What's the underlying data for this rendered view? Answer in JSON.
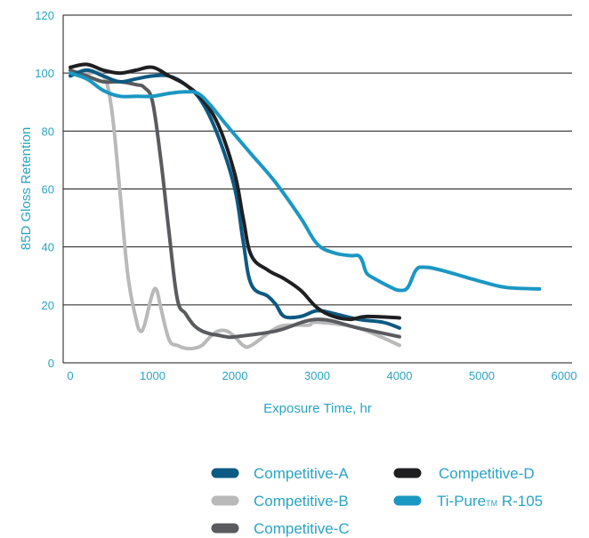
{
  "chart_data": {
    "type": "line",
    "title": "",
    "xlabel": "Exposure Time, hr",
    "ylabel": "85D Gloss Retention",
    "xlim": [
      0,
      6000
    ],
    "ylim": [
      0,
      120
    ],
    "xticks": [
      0,
      1000,
      2000,
      3000,
      4000,
      5000,
      6000
    ],
    "yticks": [
      0,
      20,
      40,
      60,
      80,
      100,
      120
    ],
    "grid": "horizontal",
    "legend_placement": "bottom",
    "label_color": "#2aa3c4",
    "series": [
      {
        "name": "Competitive-A",
        "color": "#0d5a82",
        "x": [
          0,
          200,
          400,
          600,
          800,
          1000,
          1200,
          1400,
          1600,
          1800,
          2000,
          2100,
          2200,
          2400,
          2500,
          2600,
          2800,
          3000,
          3200,
          3500,
          3800,
          4000
        ],
        "y": [
          99,
          101,
          99,
          97,
          98,
          99,
          99,
          96,
          90,
          78,
          60,
          42,
          27,
          23,
          20,
          16,
          16,
          18,
          17,
          15,
          14,
          12
        ]
      },
      {
        "name": "Competitive-B",
        "color": "#b9b9b9",
        "x": [
          0,
          200,
          400,
          500,
          600,
          700,
          800,
          850,
          900,
          1000,
          1050,
          1100,
          1200,
          1300,
          1400,
          1500,
          1600,
          1700,
          1800,
          1900,
          2000,
          2100,
          2200,
          2500,
          2700,
          2900,
          3000,
          3500,
          4000
        ],
        "y": [
          100,
          100,
          99,
          88,
          60,
          30,
          15,
          11,
          13,
          24,
          25,
          19,
          8,
          6,
          5,
          5,
          6,
          9,
          11,
          11,
          9,
          6,
          6,
          12,
          13,
          13,
          14,
          12,
          6
        ]
      },
      {
        "name": "Competitive-C",
        "color": "#595b5f",
        "x": [
          0,
          200,
          400,
          600,
          800,
          900,
          1000,
          1100,
          1200,
          1300,
          1400,
          1500,
          1600,
          1700,
          1800,
          1900,
          2000,
          2500,
          3000,
          3500,
          4000
        ],
        "y": [
          101,
          99,
          97,
          97,
          96,
          95,
          90,
          70,
          45,
          22,
          17,
          13,
          11,
          10,
          9.5,
          9,
          9,
          11,
          15,
          12,
          9
        ]
      },
      {
        "name": "Competitive-D",
        "color": "#1f1f22",
        "x": [
          0,
          200,
          400,
          600,
          800,
          1000,
          1200,
          1400,
          1600,
          1800,
          2000,
          2100,
          2200,
          2400,
          2600,
          2800,
          3000,
          3200,
          3400,
          3600,
          4000
        ],
        "y": [
          102,
          103,
          101,
          100,
          101,
          102,
          99,
          96,
          91,
          82,
          65,
          50,
          37,
          32,
          29,
          25,
          19,
          16,
          15,
          16,
          15.5
        ]
      },
      {
        "name": "Ti-Pure™ R-105",
        "color": "#1b97c3",
        "x": [
          0,
          200,
          400,
          600,
          800,
          1000,
          1200,
          1400,
          1550,
          1700,
          1900,
          2200,
          2500,
          2800,
          3000,
          3200,
          3400,
          3500,
          3550,
          3600,
          3700,
          3900,
          4000,
          4100,
          4200,
          4300,
          4500,
          5000,
          5300,
          5700
        ],
        "y": [
          100,
          98,
          94,
          92,
          92,
          92,
          93,
          93.5,
          93,
          89,
          82,
          72,
          62,
          50,
          41,
          38,
          37,
          37,
          35,
          31,
          29,
          26,
          25,
          26,
          32,
          33,
          32,
          28,
          26,
          25.5
        ]
      }
    ]
  },
  "legend": {
    "items": [
      {
        "name": "Competitive-A",
        "label": "Competitive-A",
        "color": "#0d5a82"
      },
      {
        "name": "Competitive-B",
        "label": "Competitive-B",
        "color": "#b9b9b9"
      },
      {
        "name": "Competitive-C",
        "label": "Competitive-C",
        "color": "#595b5f"
      },
      {
        "name": "Competitive-D",
        "label": "Competitive-D",
        "color": "#1f1f22"
      },
      {
        "name": "Ti-Pure R-105",
        "label_main": "Ti-Pure",
        "label_tm": "TM",
        "label_rest": " R-105",
        "color": "#1b97c3"
      }
    ]
  }
}
